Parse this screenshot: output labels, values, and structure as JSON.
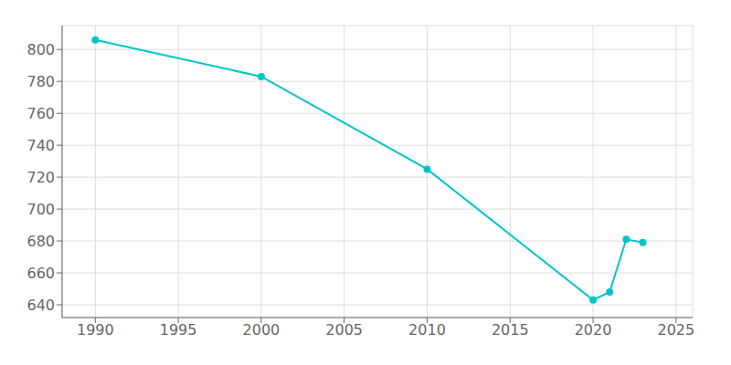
{
  "chart_data": {
    "type": "line",
    "x": [
      1990,
      2000,
      2010,
      2020,
      2021,
      2022,
      2023
    ],
    "values": [
      806,
      783,
      725,
      643,
      648,
      681,
      679
    ],
    "color": "#00C5C8",
    "marker": "circle",
    "xlim": [
      1988,
      2026
    ],
    "ylim": [
      632,
      815
    ],
    "xticks": [
      1990,
      1995,
      2000,
      2005,
      2010,
      2015,
      2020,
      2025
    ],
    "yticks": [
      640,
      660,
      680,
      700,
      720,
      740,
      760,
      780,
      800
    ],
    "grid": true
  }
}
